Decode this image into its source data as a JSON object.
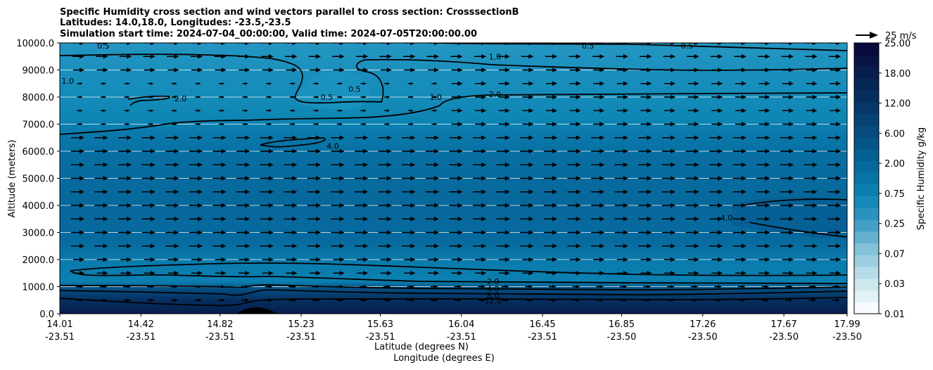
{
  "chart_data": {
    "type": "contour",
    "title_lines": [
      "Specific Humidity cross section and wind vectors parallel to cross section: CrosssectionB",
      "Latitudes: 14.0,18.0, Longitudes: -23.5,-23.5",
      "Simulation start time: 2024-07-04_00:00:00, Valid time: 2024-07-05T20:00:00.00"
    ],
    "ylabel": "Altitude (meters)",
    "xlabel_lat": "Latitude (degrees N)",
    "xlabel_lon": "Longitude (degrees E)",
    "ylim": [
      0,
      10000
    ],
    "y_ticks": [
      "0.0",
      "1000.0",
      "2000.0",
      "3000.0",
      "4000.0",
      "5000.0",
      "6000.0",
      "7000.0",
      "8000.0",
      "9000.0",
      "10000.0"
    ],
    "y_tick_values": [
      0,
      1000,
      2000,
      3000,
      4000,
      5000,
      6000,
      7000,
      8000,
      9000,
      10000
    ],
    "x_lat_ticks": [
      "14.01",
      "14.42",
      "14.82",
      "15.23",
      "15.63",
      "16.04",
      "16.45",
      "16.85",
      "17.26",
      "17.67",
      "17.99"
    ],
    "x_lon_ticks": [
      "-23.51",
      "-23.51",
      "-23.51",
      "-23.51",
      "-23.51",
      "-23.51",
      "-23.51",
      "-23.50",
      "-23.50",
      "-23.50",
      "-23.50"
    ],
    "x_lat_values": [
      14.01,
      14.42,
      14.82,
      15.23,
      15.63,
      16.04,
      16.45,
      16.85,
      17.26,
      17.67,
      17.99
    ],
    "xlim": [
      14.01,
      17.99
    ],
    "colorbar": {
      "label": "Specific Humidity g/kg",
      "tick_labels": [
        "0.01",
        "0.03",
        "0.07",
        "0.25",
        "0.75",
        "2.00",
        "6.00",
        "12.00",
        "18.00",
        "25.00"
      ],
      "colors": [
        "#f7fbff",
        "#e2f1f5",
        "#cde7ee",
        "#b5dbe8",
        "#9dcfe0",
        "#82c1d8",
        "#64b1cf",
        "#44a0c6",
        "#2a92bf",
        "#158ab8",
        "#0b80b0",
        "#0675a6",
        "#046a9c",
        "#045f92",
        "#045588",
        "#054b7e",
        "#064274",
        "#06386a",
        "#062f60",
        "#062656",
        "#071d4d",
        "#071444",
        "#08093c"
      ]
    },
    "contour_levels": [
      0.5,
      1.0,
      2.0,
      4.0,
      8.0,
      12.0
    ],
    "contour_labels": [
      {
        "text": "0.5",
        "lat": 14.23,
        "alt": 9900
      },
      {
        "text": "0.5",
        "lat": 16.68,
        "alt": 9900
      },
      {
        "text": "0.5",
        "lat": 17.18,
        "alt": 9900
      },
      {
        "text": "1.0",
        "lat": 16.21,
        "alt": 9500
      },
      {
        "text": "1.0",
        "lat": 14.05,
        "alt": 8600
      },
      {
        "text": "2.0",
        "lat": 14.62,
        "alt": 7950
      },
      {
        "text": "0.5",
        "lat": 15.36,
        "alt": 8000
      },
      {
        "text": "0.5",
        "lat": 15.5,
        "alt": 8300
      },
      {
        "text": "1.0",
        "lat": 15.91,
        "alt": 8000
      },
      {
        "text": "2.0",
        "lat": 16.21,
        "alt": 8100
      },
      {
        "text": "4.0",
        "lat": 15.39,
        "alt": 6200
      },
      {
        "text": "4.0",
        "lat": 17.38,
        "alt": 3550
      },
      {
        "text": "2.0",
        "lat": 16.2,
        "alt": 1200
      },
      {
        "text": "4.0",
        "lat": 16.2,
        "alt": 920
      },
      {
        "text": "8.0",
        "lat": 16.2,
        "alt": 680
      },
      {
        "text": "12.0",
        "lat": 16.2,
        "alt": 480
      }
    ],
    "wind_reference": "25 m/s",
    "wind_field": "vectors parallel to cross section, predominantly positive (rightward), strongest 2500-6500 m"
  }
}
